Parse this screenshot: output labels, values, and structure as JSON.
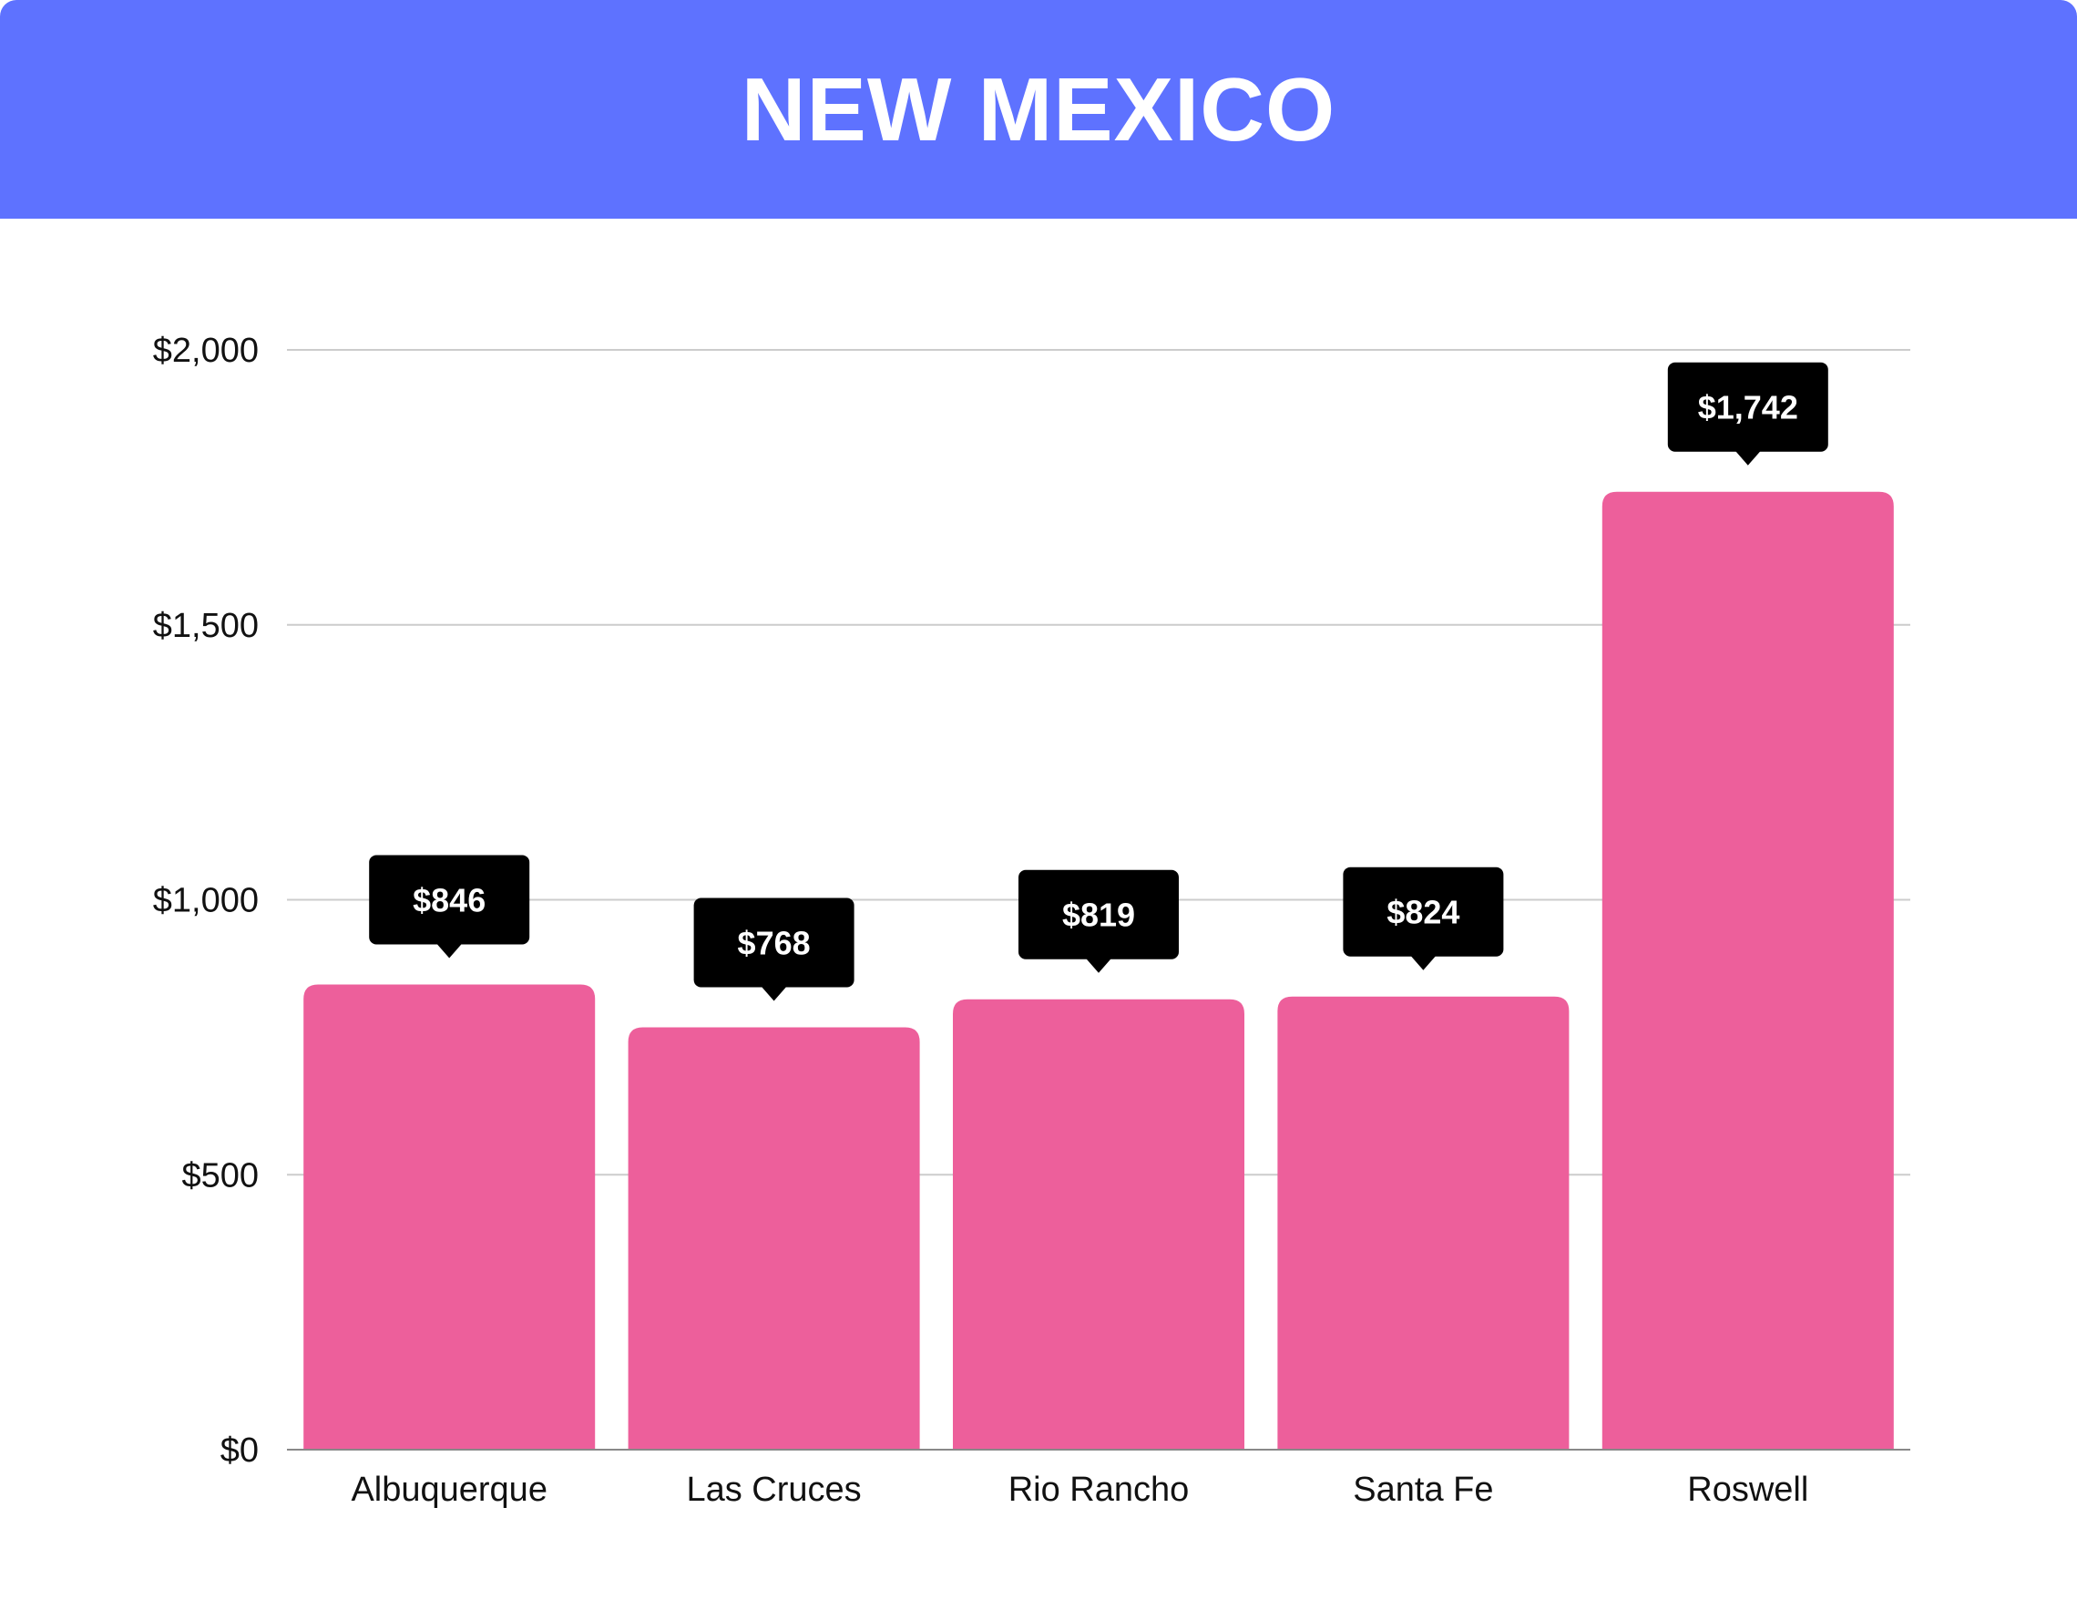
{
  "header": {
    "title": "NEW MEXICO"
  },
  "colors": {
    "header_bg": "#5e72ff",
    "bar": "#ed5f9b",
    "label_bg": "#000000",
    "label_text": "#ffffff",
    "grid": "#cccccc"
  },
  "chart_data": {
    "type": "bar",
    "title": "NEW MEXICO",
    "xlabel": "",
    "ylabel": "",
    "categories": [
      "Albuquerque",
      "Las Cruces",
      "Rio Rancho",
      "Santa Fe",
      "Roswell"
    ],
    "values": [
      846,
      768,
      819,
      824,
      1742
    ],
    "data_labels": [
      "$846",
      "$768",
      "$819",
      "$824",
      "$1,742"
    ],
    "ylim": [
      0,
      2000
    ],
    "y_ticks": [
      0,
      500,
      1000,
      1500,
      2000
    ],
    "y_tick_labels": [
      "$0",
      "$500",
      "$1,000",
      "$1,500",
      "$2,000"
    ],
    "grid": true,
    "legend": "none"
  }
}
